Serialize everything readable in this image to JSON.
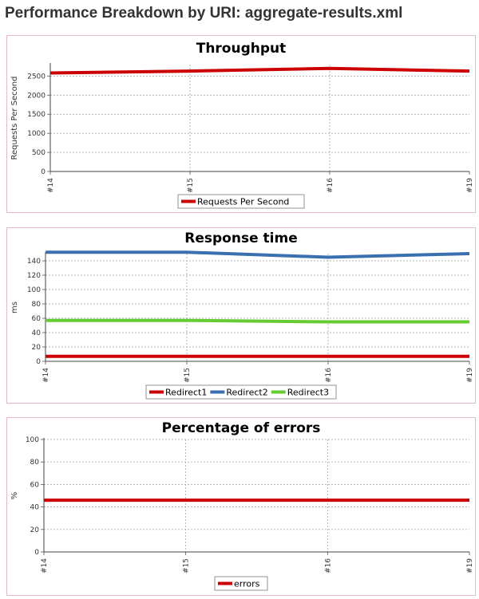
{
  "page": {
    "title": "Performance Breakdown by URI: aggregate-results.xml"
  },
  "chart_data": [
    {
      "type": "line",
      "title": "Throughput",
      "xlabel": "",
      "ylabel": "Requests Per Second",
      "categories": [
        "#14",
        "#15",
        "#16",
        "#19"
      ],
      "ylim": [
        0,
        2800
      ],
      "yticks": [
        0,
        500,
        1000,
        1500,
        2000,
        2500
      ],
      "grid": true,
      "legend": "bottom",
      "series": [
        {
          "name": "Requests Per Second",
          "color": "#cc0000",
          "values": [
            2580,
            2630,
            2700,
            2630
          ]
        }
      ]
    },
    {
      "type": "line",
      "title": "Response time",
      "xlabel": "",
      "ylabel": "ms",
      "categories": [
        "#14",
        "#15",
        "#16",
        "#19"
      ],
      "ylim": [
        0,
        150
      ],
      "yticks": [
        0,
        20,
        40,
        60,
        80,
        100,
        120,
        140
      ],
      "grid": true,
      "legend": "bottom",
      "series": [
        {
          "name": "Redirect1",
          "color": "#cc0000",
          "values": [
            7,
            7,
            7,
            7
          ]
        },
        {
          "name": "Redirect2",
          "color": "#3a6fb0",
          "values": [
            152,
            152,
            145,
            150
          ]
        },
        {
          "name": "Redirect3",
          "color": "#66cc33",
          "values": [
            57,
            57,
            55,
            55
          ]
        }
      ]
    },
    {
      "type": "line",
      "title": "Percentage of errors",
      "xlabel": "",
      "ylabel": "%",
      "categories": [
        "#14",
        "#15",
        "#16",
        "#19"
      ],
      "ylim": [
        0,
        100
      ],
      "yticks": [
        0,
        20,
        40,
        60,
        80,
        100
      ],
      "grid": true,
      "legend": "bottom",
      "series": [
        {
          "name": "errors",
          "color": "#cc0000",
          "values": [
            46,
            46,
            46,
            46
          ]
        }
      ]
    }
  ]
}
